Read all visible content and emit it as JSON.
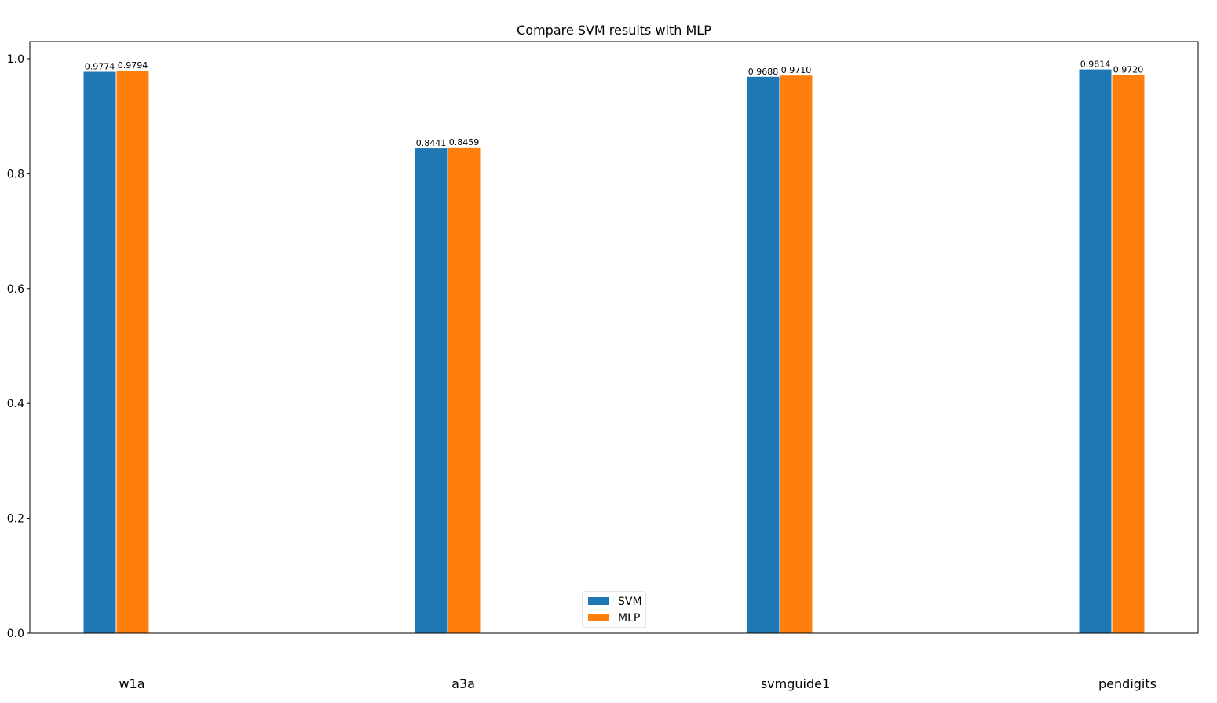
{
  "chart_data": {
    "type": "bar",
    "title": "Compare SVM results with MLP",
    "xlabel": "",
    "ylabel": "",
    "categories": [
      "w1a",
      "a3a",
      "svmguide1",
      "pendigits"
    ],
    "series": [
      {
        "name": "SVM",
        "color": "#1f77b4",
        "values": [
          0.9774,
          0.8441,
          0.9688,
          0.9814
        ],
        "labels": [
          "0.9774",
          "0.8441",
          "0.9688",
          "0.9814"
        ]
      },
      {
        "name": "MLP",
        "color": "#ff7f0e",
        "values": [
          0.9794,
          0.8459,
          0.971,
          0.972
        ],
        "labels": [
          "0.9794",
          "0.8459",
          "0.9710",
          "0.9720"
        ]
      }
    ],
    "ylim": [
      0,
      1.03
    ],
    "yticks": [
      0.0,
      0.2,
      0.4,
      0.6,
      0.8,
      1.0
    ],
    "ytick_labels": [
      "0.0",
      "0.2",
      "0.4",
      "0.6",
      "0.8",
      "1.0"
    ],
    "grid": false,
    "legend_position": "bottom-center"
  }
}
